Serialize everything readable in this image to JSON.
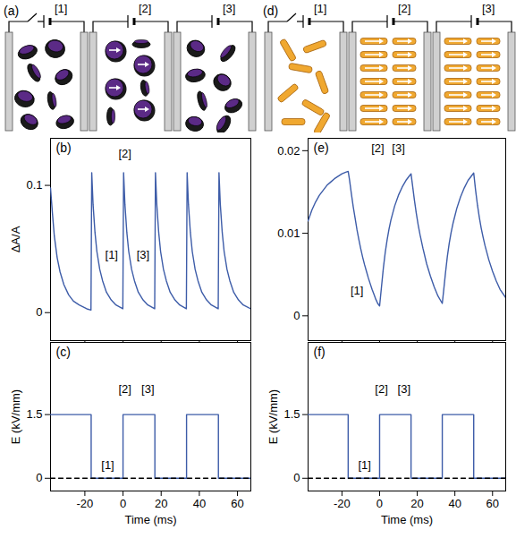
{
  "schematics": [
    {
      "label": "(a)",
      "states": [
        "[1]",
        "[2]",
        "[3]"
      ]
    },
    {
      "label": "(d)",
      "states": [
        "[1]",
        "[2]",
        "[3]"
      ]
    }
  ],
  "chart_data": [
    {
      "type": "line",
      "title": "(b)",
      "y_label": "ΔA/A",
      "tick_labels": "y",
      "xlim": [
        -38,
        67
      ],
      "xticks": [
        -20,
        0,
        20,
        40,
        60
      ],
      "ylim": [
        -0.022,
        0.137
      ],
      "yticks": [
        0,
        0.1
      ],
      "series": [
        {
          "type": "line",
          "color": "#3d5ca8",
          "x": [
            -38,
            -37,
            -36,
            -34.5,
            -33,
            -31,
            -28.5,
            -26,
            -23,
            -19,
            -16.8,
            -16.4,
            -15.7,
            -14.7,
            -13.7,
            -12.2,
            -10.7,
            -8.7,
            -6.2,
            -3.7,
            -0.1,
            0.3,
            1,
            2,
            3,
            4.5,
            6,
            8,
            10.5,
            13,
            16.6,
            17,
            17.7,
            18.7,
            19.7,
            21.2,
            22.7,
            24.7,
            27.2,
            29.7,
            33.2,
            33.6,
            34.3,
            35.3,
            36.3,
            37.8,
            39.3,
            41.3,
            43.8,
            46.3,
            49.9,
            50.3,
            51,
            52,
            53,
            54.5,
            56,
            58,
            60.5,
            63,
            67
          ],
          "values": [
            0.098,
            0.078,
            0.06,
            0.043,
            0.032,
            0.022,
            0.014,
            0.009,
            0.006,
            0.003,
            0.002,
            0.11,
            0.085,
            0.063,
            0.048,
            0.034,
            0.025,
            0.016,
            0.01,
            0.006,
            0.003,
            0.11,
            0.085,
            0.063,
            0.048,
            0.034,
            0.025,
            0.016,
            0.01,
            0.006,
            0.003,
            0.11,
            0.085,
            0.063,
            0.048,
            0.034,
            0.025,
            0.016,
            0.01,
            0.006,
            0.003,
            0.11,
            0.085,
            0.063,
            0.048,
            0.034,
            0.025,
            0.016,
            0.01,
            0.006,
            0.003,
            0.11,
            0.085,
            0.063,
            0.048,
            0.034,
            0.025,
            0.016,
            0.01,
            0.006,
            0.003
          ]
        }
      ],
      "annotations": [
        {
          "text": "[2]",
          "x": 1,
          "y": 0.125
        },
        {
          "text": "[1]",
          "x": -6,
          "y": 0.045
        },
        {
          "text": "[3]",
          "x": 10.5,
          "y": 0.045
        }
      ]
    },
    {
      "type": "line",
      "title": "(c)",
      "x_label": "Time (ms)",
      "y_label": "E (kV/mm)",
      "xlim": [
        -38,
        67
      ],
      "xticks": [
        -20,
        0,
        20,
        40,
        60
      ],
      "ylim": [
        -0.3,
        3.2
      ],
      "yticks": [
        0,
        1.5
      ],
      "series": [
        {
          "type": "step",
          "color": "#3d5ca8",
          "line_style": "solid",
          "x": [
            -38,
            -16.7,
            0,
            16.7,
            33.3,
            50,
            67
          ],
          "values": [
            1.5,
            0,
            1.5,
            0,
            1.5,
            0,
            0
          ]
        },
        {
          "type": "line",
          "color": "#000000",
          "line_style": "dashed",
          "x": [
            -38,
            67
          ],
          "values": [
            0,
            0
          ]
        }
      ],
      "annotations": [
        {
          "text": "[2]",
          "x": 1,
          "y": 2.1
        },
        {
          "text": "[3]",
          "x": 13,
          "y": 2.1
        },
        {
          "text": "[1]",
          "x": -8,
          "y": 0.3
        }
      ]
    },
    {
      "type": "line",
      "title": "(e)",
      "tick_labels": "y",
      "xlim": [
        -38,
        67
      ],
      "xticks": [
        -20,
        0,
        20,
        40,
        60
      ],
      "ylim": [
        -0.003,
        0.0215
      ],
      "yticks": [
        0,
        0.01,
        0.02
      ],
      "series": [
        {
          "type": "line",
          "color": "#3d5ca8",
          "x": [
            -38,
            -36,
            -34,
            -32,
            -30,
            -28,
            -26,
            -24,
            -22,
            -20,
            -18,
            -16.7,
            -16,
            -15,
            -14,
            -13,
            -12,
            -11,
            -10,
            -9,
            -8,
            -7,
            -6,
            -5,
            -4,
            -3,
            -2,
            -1,
            0,
            1,
            2,
            3,
            4,
            5,
            6,
            8,
            10,
            12,
            14,
            16,
            16.7,
            17.5,
            18.5,
            19.5,
            20.5,
            21.5,
            23,
            25,
            27,
            29,
            31,
            33.3,
            34,
            35,
            36,
            37,
            38,
            39,
            41,
            43,
            45,
            47,
            49,
            50,
            51,
            52,
            53,
            54,
            55,
            56,
            58,
            60,
            62,
            64,
            67
          ],
          "values": [
            0.0115,
            0.0128,
            0.0138,
            0.0146,
            0.0152,
            0.0158,
            0.0162,
            0.0166,
            0.0169,
            0.0172,
            0.0174,
            0.0175,
            0.0165,
            0.0148,
            0.0132,
            0.0118,
            0.0104,
            0.0092,
            0.0081,
            0.0071,
            0.0062,
            0.0054,
            0.0046,
            0.0039,
            0.0032,
            0.0026,
            0.002,
            0.0015,
            0.0012,
            0.0035,
            0.0058,
            0.0077,
            0.0092,
            0.0105,
            0.0116,
            0.0133,
            0.0146,
            0.0156,
            0.0164,
            0.017,
            0.0172,
            0.0158,
            0.014,
            0.0124,
            0.011,
            0.0098,
            0.0082,
            0.0063,
            0.0048,
            0.0035,
            0.0024,
            0.0015,
            0.003,
            0.0052,
            0.0072,
            0.0088,
            0.0101,
            0.0112,
            0.013,
            0.0144,
            0.0155,
            0.0164,
            0.017,
            0.0173,
            0.0152,
            0.0134,
            0.0119,
            0.0106,
            0.0095,
            0.0085,
            0.0068,
            0.0054,
            0.0042,
            0.0032,
            0.0022
          ]
        }
      ],
      "annotations": [
        {
          "text": "[2]",
          "x": -1,
          "y": 0.0203
        },
        {
          "text": "[3]",
          "x": 10,
          "y": 0.0203
        },
        {
          "text": "[1]",
          "x": -12,
          "y": 0.003
        }
      ]
    },
    {
      "type": "line",
      "title": "(f)",
      "x_label": "Time (ms)",
      "y_label": "E (kV/mm)",
      "xlim": [
        -38,
        67
      ],
      "xticks": [
        -20,
        0,
        20,
        40,
        60
      ],
      "ylim": [
        -0.3,
        3.2
      ],
      "yticks": [
        0,
        1.5
      ],
      "series": [
        {
          "type": "step",
          "color": "#3d5ca8",
          "line_style": "solid",
          "x": [
            -38,
            -16.7,
            0,
            16.7,
            33.3,
            50,
            67
          ],
          "values": [
            1.5,
            0,
            1.5,
            0,
            1.5,
            0,
            0
          ]
        },
        {
          "type": "line",
          "color": "#000000",
          "line_style": "dashed",
          "x": [
            -38,
            67
          ],
          "values": [
            0,
            0
          ]
        }
      ],
      "annotations": [
        {
          "text": "[2]",
          "x": 1,
          "y": 2.1
        },
        {
          "text": "[3]",
          "x": 13,
          "y": 2.1
        },
        {
          "text": "[1]",
          "x": -8,
          "y": 0.3
        }
      ]
    }
  ]
}
